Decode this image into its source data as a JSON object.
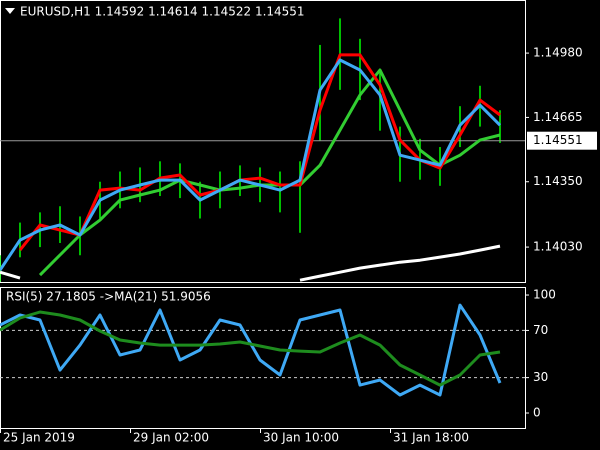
{
  "chart_data": [
    {
      "type": "line",
      "title": "EURUSD,H1  1.14592 1.14614 1.14522 1.14551",
      "x": [
        0,
        4,
        8,
        12,
        16,
        20,
        24,
        28,
        32,
        36,
        40,
        44,
        48,
        52,
        56,
        60,
        64,
        68,
        72,
        76,
        80,
        84,
        88,
        92,
        96,
        100
      ],
      "xlim": [
        0,
        105
      ],
      "ylim": [
        1.13859,
        1.1524
      ],
      "yticks": [
        {
          "value": 1.1498,
          "label": "1.14980"
        },
        1.14665,
        {
          "value": 1.1435,
          "label": "1.14350"
        },
        {
          "value": 1.1403,
          "label": "1.14030"
        }
      ],
      "current": 1.14551,
      "range": {
        "color": "#00ff00",
        "high": [
          1.1399,
          1.1415,
          1.142,
          1.1423,
          1.1418,
          1.1435,
          1.144,
          1.1442,
          1.1445,
          1.1444,
          1.1435,
          1.144,
          1.1443,
          1.1442,
          1.144,
          1.1445,
          1.1502,
          1.1515,
          1.1505,
          1.149,
          1.1462,
          1.1456,
          1.1452,
          1.1472,
          1.1482,
          1.147
        ],
        "low": [
          1.1386,
          1.1398,
          1.1403,
          1.1405,
          1.1399,
          1.1417,
          1.1422,
          1.1425,
          1.1428,
          1.1427,
          1.1417,
          1.1422,
          1.1428,
          1.1425,
          1.142,
          1.141,
          1.1455,
          1.148,
          1.1475,
          1.146,
          1.1435,
          1.1436,
          1.1433,
          1.1452,
          1.1462,
          1.1454
        ]
      },
      "series": [
        {
          "color": "#ffffff",
          "values": [
            1.13907,
            1.13878,
            null,
            null,
            null,
            null,
            null,
            null,
            null,
            null,
            null,
            null,
            null,
            null,
            null,
            1.13868,
            1.13888,
            1.13907,
            1.13927,
            1.13942,
            1.13956,
            1.13966,
            1.13981,
            1.13996,
            1.14015,
            1.14035
          ]
        },
        {
          "color": "#32cd32",
          "values": [
            null,
            null,
            1.13893,
            1.13991,
            1.14089,
            1.14162,
            1.1426,
            1.14285,
            1.14309,
            1.14358,
            1.14334,
            1.14309,
            1.14319,
            1.14334,
            1.14334,
            1.14334,
            1.14431,
            1.14603,
            1.14775,
            1.14897,
            1.14701,
            1.14505,
            1.14431,
            1.1448,
            1.14554,
            1.14579
          ]
        },
        {
          "color": "#ff0000",
          "values": [
            null,
            1.14015,
            1.14138,
            1.14113,
            1.14089,
            1.14309,
            1.14319,
            1.14309,
            1.14368,
            1.14383,
            1.14285,
            1.14309,
            1.14358,
            1.14368,
            1.14334,
            1.14334,
            1.14701,
            1.14971,
            1.14971,
            1.14824,
            1.14554,
            1.14456,
            1.14417,
            1.14579,
            1.1475,
            1.14677
          ]
        },
        {
          "color": "#3fa9f5",
          "values": [
            1.13917,
            1.14064,
            1.14113,
            1.14138,
            1.14089,
            1.1426,
            1.14309,
            1.14334,
            1.14358,
            1.14358,
            1.1426,
            1.14309,
            1.14358,
            1.14334,
            1.14309,
            1.14358,
            1.14799,
            1.14946,
            1.14897,
            1.14775,
            1.1448,
            1.14456,
            1.14431,
            1.14627,
            1.14725,
            1.14627
          ]
        }
      ]
    },
    {
      "type": "line",
      "title": "RSI(5) 27.1805  ->MA(21) 51.9056",
      "x": [
        0,
        4,
        8,
        12,
        16,
        20,
        24,
        28,
        32,
        36,
        40,
        44,
        48,
        52,
        56,
        60,
        64,
        68,
        72,
        76,
        80,
        84,
        88,
        92,
        96,
        100
      ],
      "xlim": [
        0,
        105
      ],
      "xticks": [
        {
          "value": 0,
          "label": "25 Jan 2019"
        },
        {
          "value": 26,
          "label": "29 Jan 02:00"
        },
        {
          "value": 52,
          "label": "30 Jan 10:00"
        },
        {
          "value": 78,
          "label": "31 Jan 18:00"
        }
      ],
      "ylim": [
        -12.7,
        106.8
      ],
      "yticks": [
        0,
        30,
        70,
        100
      ],
      "levels": [
        30,
        70
      ],
      "series": [
        {
          "color": "#3fa9f5",
          "values": [
            74.6,
            83.1,
            78.8,
            36.4,
            57.6,
            83.1,
            49.2,
            53.4,
            87.3,
            44.9,
            53.4,
            78.8,
            74.6,
            44.9,
            32.2,
            78.8,
            83.1,
            87.3,
            23.7,
            28.0,
            15.3,
            23.7,
            15.3,
            91.5,
            66.1,
            25.4
          ]
        },
        {
          "color": "#1e8c1e",
          "values": [
            70.3,
            80.5,
            85.6,
            83.1,
            78.8,
            69.5,
            61.9,
            59.3,
            57.6,
            57.6,
            57.6,
            58.5,
            60.2,
            56.8,
            53.4,
            52.5,
            51.7,
            59.3,
            66.1,
            57.6,
            40.7,
            32.2,
            23.7,
            32.2,
            49.2,
            51.7
          ]
        }
      ]
    }
  ]
}
